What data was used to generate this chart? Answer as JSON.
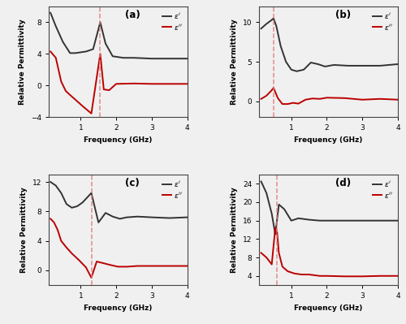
{
  "panels": [
    {
      "label": "(a)",
      "ylabel": "Relative Permittivity",
      "xlabel": "Frequency (GHz)",
      "xlim": [
        0.1,
        4.0
      ],
      "ylim": [
        -4,
        10
      ],
      "yticks": [
        -4,
        0,
        4,
        8
      ],
      "xticks": [
        1,
        2,
        3,
        4
      ],
      "dashed_x": 1.55,
      "eps_real": {
        "x": [
          0.15,
          0.3,
          0.5,
          0.7,
          0.85,
          1.0,
          1.15,
          1.35,
          1.55,
          1.7,
          1.9,
          2.2,
          2.5,
          3.0,
          3.5,
          4.0
        ],
        "y": [
          9.2,
          7.5,
          5.5,
          4.1,
          4.1,
          4.2,
          4.3,
          4.6,
          8.0,
          5.3,
          3.7,
          3.5,
          3.5,
          3.4,
          3.4,
          3.4
        ]
      },
      "eps_imag": {
        "x": [
          0.15,
          0.3,
          0.45,
          0.58,
          0.7,
          0.85,
          1.05,
          1.3,
          1.55,
          1.65,
          1.8,
          2.0,
          2.5,
          3.0,
          3.5,
          4.0
        ],
        "y": [
          4.3,
          3.5,
          0.5,
          -0.7,
          -1.2,
          -1.8,
          -2.6,
          -3.55,
          4.0,
          -0.5,
          -0.6,
          0.2,
          0.25,
          0.2,
          0.2,
          0.2
        ]
      }
    },
    {
      "label": "(b)",
      "ylabel": "Relative Permittivity",
      "xlabel": "Frequency (GHz)",
      "xlim": [
        0.1,
        4.0
      ],
      "ylim": [
        -2,
        12
      ],
      "yticks": [
        0,
        5,
        10
      ],
      "xticks": [
        1,
        2,
        3,
        4
      ],
      "dashed_x": 0.5,
      "eps_real": {
        "x": [
          0.15,
          0.3,
          0.45,
          0.5,
          0.58,
          0.7,
          0.85,
          1.0,
          1.15,
          1.35,
          1.55,
          1.75,
          1.95,
          2.2,
          2.6,
          3.0,
          3.5,
          4.0
        ],
        "y": [
          9.2,
          9.8,
          10.3,
          10.5,
          9.5,
          7.0,
          5.0,
          4.0,
          3.8,
          4.0,
          4.9,
          4.7,
          4.4,
          4.6,
          4.5,
          4.5,
          4.5,
          4.7
        ]
      },
      "eps_imag": {
        "x": [
          0.15,
          0.3,
          0.45,
          0.5,
          0.62,
          0.75,
          0.9,
          1.05,
          1.2,
          1.4,
          1.6,
          1.8,
          2.0,
          2.5,
          3.0,
          3.5,
          4.0
        ],
        "y": [
          0.3,
          0.7,
          1.4,
          1.7,
          0.4,
          -0.35,
          -0.35,
          -0.2,
          -0.3,
          0.2,
          0.35,
          0.3,
          0.45,
          0.4,
          0.2,
          0.3,
          0.2
        ]
      }
    },
    {
      "label": "(c)",
      "ylabel": "Relative Permittivity",
      "xlabel": "Frequency (GHz)",
      "xlim": [
        0.1,
        4.0
      ],
      "ylim": [
        -2,
        13
      ],
      "yticks": [
        0,
        4,
        8,
        12
      ],
      "xticks": [
        1,
        2,
        3,
        4
      ],
      "dashed_x": 1.3,
      "eps_real": {
        "x": [
          0.15,
          0.3,
          0.45,
          0.6,
          0.75,
          0.9,
          1.05,
          1.3,
          1.5,
          1.7,
          1.9,
          2.1,
          2.3,
          2.6,
          3.0,
          3.5,
          4.0
        ],
        "y": [
          12.0,
          11.5,
          10.5,
          9.0,
          8.5,
          8.7,
          9.2,
          10.5,
          6.5,
          7.8,
          7.3,
          7.0,
          7.2,
          7.3,
          7.2,
          7.1,
          7.2
        ]
      },
      "eps_imag": {
        "x": [
          0.15,
          0.25,
          0.35,
          0.45,
          0.6,
          0.75,
          0.95,
          1.15,
          1.3,
          1.45,
          1.62,
          1.82,
          2.05,
          2.3,
          2.6,
          3.0,
          3.5,
          4.0
        ],
        "y": [
          7.0,
          6.5,
          5.5,
          4.0,
          3.1,
          2.3,
          1.4,
          0.4,
          -1.0,
          1.2,
          1.0,
          0.75,
          0.5,
          0.5,
          0.6,
          0.6,
          0.6,
          0.6
        ]
      }
    },
    {
      "label": "(d)",
      "ylabel": "Relative Permittivity",
      "xlabel": "Frequency (GHz)",
      "xlim": [
        0.1,
        4.0
      ],
      "ylim": [
        2,
        26
      ],
      "yticks": [
        4,
        8,
        12,
        16,
        20,
        24
      ],
      "xticks": [
        1,
        2,
        3,
        4
      ],
      "dashed_x": 0.6,
      "eps_real": {
        "x": [
          0.15,
          0.3,
          0.45,
          0.55,
          0.65,
          0.8,
          1.0,
          1.2,
          1.5,
          1.8,
          2.0,
          2.5,
          3.0,
          3.5,
          4.0
        ],
        "y": [
          24.5,
          22.0,
          17.5,
          13.0,
          19.5,
          18.5,
          16.0,
          16.5,
          16.2,
          16.0,
          16.0,
          16.0,
          16.0,
          16.0,
          16.0
        ]
      },
      "eps_imag": {
        "x": [
          0.15,
          0.3,
          0.45,
          0.55,
          0.6,
          0.65,
          0.75,
          0.9,
          1.1,
          1.3,
          1.5,
          1.8,
          2.0,
          2.5,
          3.0,
          3.5,
          4.0
        ],
        "y": [
          9.0,
          8.0,
          6.5,
          14.5,
          13.5,
          9.0,
          6.0,
          5.0,
          4.5,
          4.3,
          4.3,
          4.0,
          4.0,
          3.9,
          3.9,
          4.0,
          4.0
        ]
      }
    }
  ],
  "color_real": "#333333",
  "color_imag": "#bb0000",
  "dashed_color": "#e08080",
  "linewidth": 1.4,
  "bg_color": "#f0f0f0"
}
